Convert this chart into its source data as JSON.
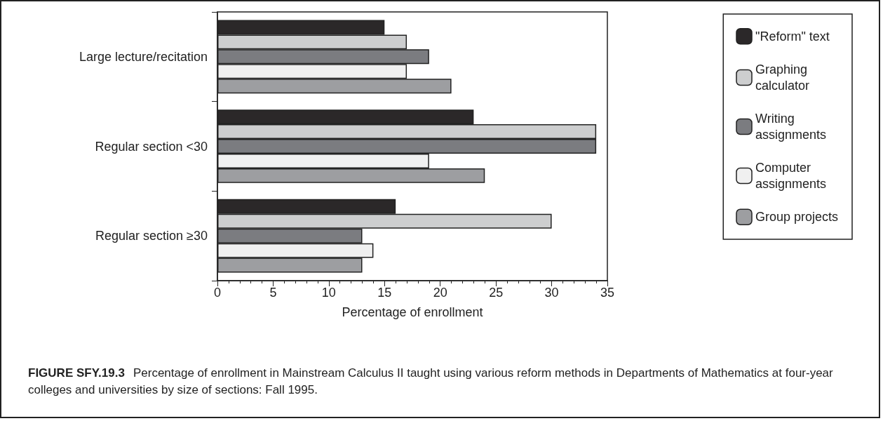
{
  "chart_data": {
    "type": "bar",
    "orientation": "horizontal",
    "categories": [
      "Large lecture/recitation",
      "Regular section <30",
      "Regular section ≥30"
    ],
    "series": [
      {
        "name": "\"Reform\" text",
        "color": "#2b2829",
        "values": [
          15,
          23,
          16
        ]
      },
      {
        "name": "Graphing calculator",
        "color": "#cdcecf",
        "values": [
          17,
          34,
          30
        ]
      },
      {
        "name": "Writing assignments",
        "color": "#7b7c80",
        "values": [
          19,
          34,
          13
        ]
      },
      {
        "name": "Computer assignments",
        "color": "#f0f0f0",
        "values": [
          17,
          19,
          14
        ]
      },
      {
        "name": "Group projects",
        "color": "#9d9ea1",
        "values": [
          21,
          24,
          13
        ]
      }
    ],
    "xlabel": "Percentage of enrollment",
    "xlim": [
      0,
      35
    ],
    "xticks": [
      0,
      {
        "value": 1,
        "label": null
      },
      {
        "value": 2,
        "label": null
      },
      {
        "value": 3,
        "label": null
      },
      {
        "value": 4,
        "label": null
      },
      5,
      {
        "value": 6,
        "label": null
      },
      {
        "value": 7,
        "label": null
      },
      {
        "value": 8,
        "label": null
      },
      {
        "value": 9,
        "label": null
      },
      10,
      {
        "value": 11,
        "label": null
      },
      {
        "value": 12,
        "label": null
      },
      {
        "value": 13,
        "label": null
      },
      {
        "value": 14,
        "label": null
      },
      15,
      {
        "value": 16,
        "label": null
      },
      {
        "value": 17,
        "label": null
      },
      {
        "value": 18,
        "label": null
      },
      {
        "value": 19,
        "label": null
      },
      20,
      {
        "value": 21,
        "label": null
      },
      {
        "value": 22,
        "label": null
      },
      {
        "value": 23,
        "label": null
      },
      {
        "value": 24,
        "label": null
      },
      25,
      {
        "value": 26,
        "label": null
      },
      {
        "value": 27,
        "label": null
      },
      {
        "value": 28,
        "label": null
      },
      {
        "value": 29,
        "label": null
      },
      30,
      {
        "value": 31,
        "label": null
      },
      {
        "value": 32,
        "label": null
      },
      {
        "value": 33,
        "label": null
      },
      {
        "value": 34,
        "label": null
      },
      35
    ],
    "grid": false,
    "legend": "right",
    "annotations": [
      "FIGURE SFY.19.3",
      "Percentage of enrollment in Mainstream Calculus II taught using various reform methods in Departments of Mathematics at four-year colleges and universities by size of sections: Fall 1995."
    ]
  }
}
